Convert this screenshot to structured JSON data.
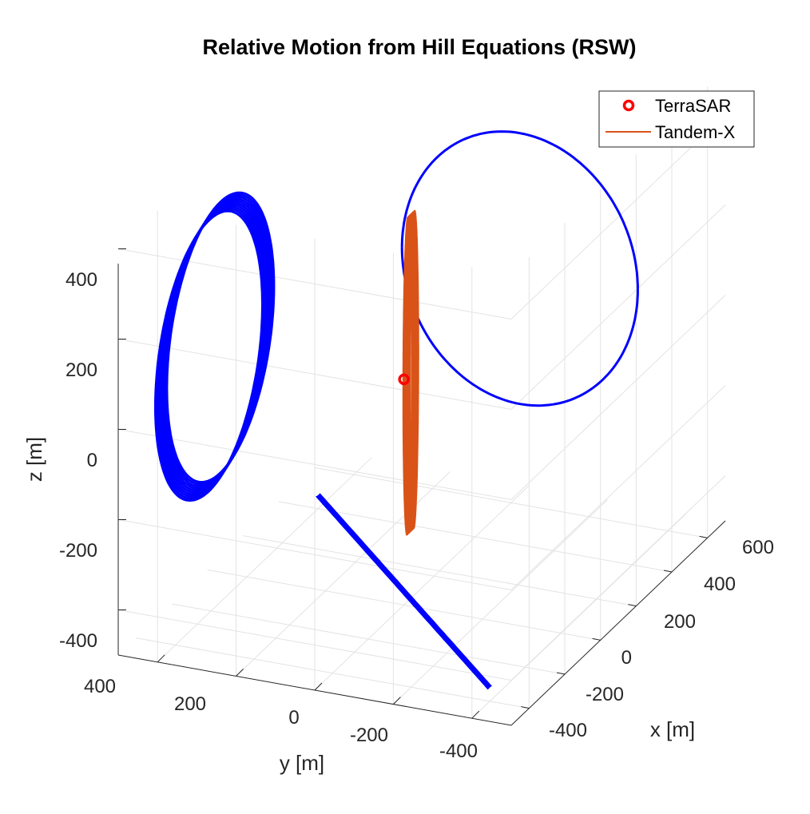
{
  "chart_data": {
    "type": "line3d",
    "title": "Relative Motion from Hill Equations (RSW)",
    "xlabel": "x [m]",
    "ylabel": "y [m]",
    "zlabel": "z [m]",
    "x_ticks": [
      "-400",
      "-200",
      "0",
      "200",
      "400",
      "600"
    ],
    "y_ticks": [
      "400",
      "200",
      "0",
      "-200",
      "-400"
    ],
    "z_ticks": [
      "400",
      "200",
      "0",
      "-200",
      "-400"
    ],
    "grid": true,
    "legend_position": "top-right",
    "legend": [
      {
        "label": "TerraSAR",
        "marker": "circle",
        "color": "#ff0000"
      },
      {
        "label": "Tandem-X",
        "marker": "line",
        "color": "#d95319"
      }
    ],
    "series": [
      {
        "name": "TerraSAR",
        "color": "#ff0000",
        "points": [
          [
            0,
            0,
            0
          ]
        ]
      },
      {
        "name": "Tandem-X",
        "color": "#d95319",
        "ellipse": {
          "x_range": [
            -50,
            130
          ],
          "y_range": [
            -30,
            30
          ],
          "z_range": [
            -350,
            350
          ]
        }
      },
      {
        "color": "#0000ff",
        "ellipse": {
          "x_range": [
            -300,
            300
          ],
          "y": 480,
          "z_range": [
            -300,
            300
          ]
        }
      },
      {
        "color": "#0000ff",
        "ellipse": {
          "x": 650,
          "y_range": [
            -300,
            300
          ],
          "z_range": [
            -300,
            300
          ]
        }
      },
      {
        "color": "#0000ff",
        "ellipse": {
          "x_range": [
            -400,
            400
          ],
          "y_range": [
            -400,
            400
          ],
          "z": -470
        }
      }
    ]
  }
}
